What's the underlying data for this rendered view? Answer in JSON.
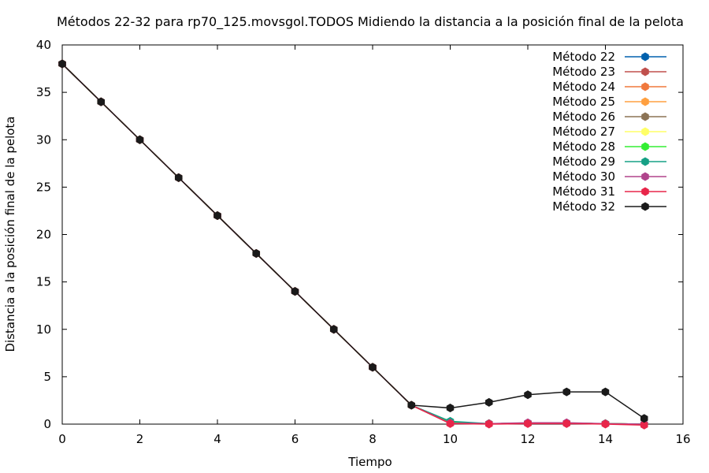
{
  "chart_data": {
    "type": "line",
    "title": "Métodos 22-32 para rp70_125.movsgol.TODOS Midiendo la distancia a la posición final de la pelota",
    "xlabel": "Tiempo",
    "ylabel": "Distancia a la posición final de la pelota",
    "xlim": [
      0,
      16
    ],
    "ylim": [
      0,
      40
    ],
    "xticks": [
      0,
      2,
      4,
      6,
      8,
      10,
      12,
      14,
      16
    ],
    "yticks": [
      0,
      5,
      10,
      15,
      20,
      25,
      30,
      35,
      40
    ],
    "grid": false,
    "legend_position": "top-right",
    "x": [
      0,
      1,
      2,
      3,
      4,
      5,
      6,
      7,
      8,
      9,
      10,
      11,
      12,
      13,
      14,
      15
    ],
    "series": [
      {
        "name": "Método 22",
        "color": "#0060ad",
        "values": [
          38,
          34,
          30,
          26,
          22,
          18,
          14,
          10,
          6,
          2,
          0.1,
          0.05,
          0.1,
          0.1,
          0.05,
          0.0
        ]
      },
      {
        "name": "Método 23",
        "color": "#c0504d",
        "values": [
          38,
          34,
          30,
          26,
          22,
          18,
          14,
          10,
          6,
          2,
          0.1,
          0.05,
          0.1,
          0.1,
          0.05,
          0.0
        ]
      },
      {
        "name": "Método 24",
        "color": "#f0783c",
        "values": [
          38,
          34,
          30,
          26,
          22,
          18,
          14,
          10,
          6,
          2,
          0.1,
          0.05,
          0.1,
          0.1,
          0.05,
          0.0
        ]
      },
      {
        "name": "Método 25",
        "color": "#ffa040",
        "values": [
          38,
          34,
          30,
          26,
          22,
          18,
          14,
          10,
          6,
          2,
          0.1,
          0.05,
          0.1,
          0.1,
          0.05,
          0.0
        ]
      },
      {
        "name": "Método 26",
        "color": "#8b7355",
        "values": [
          38,
          34,
          30,
          26,
          22,
          18,
          14,
          10,
          6,
          2,
          0.1,
          0.05,
          0.1,
          0.1,
          0.05,
          0.0
        ]
      },
      {
        "name": "Método 27",
        "color": "#ffff66",
        "values": [
          38,
          34,
          30,
          26,
          22,
          18,
          14,
          10,
          6,
          2,
          0.1,
          0.05,
          0.1,
          0.1,
          0.05,
          0.0
        ]
      },
      {
        "name": "Método 28",
        "color": "#33ee33",
        "values": [
          38,
          34,
          30,
          26,
          22,
          18,
          14,
          10,
          6,
          2,
          0.2,
          0.05,
          0.1,
          0.1,
          0.05,
          0.0
        ]
      },
      {
        "name": "Método 29",
        "color": "#16a085",
        "values": [
          38,
          34,
          30,
          26,
          22,
          18,
          14,
          10,
          6,
          2,
          0.3,
          0.05,
          0.1,
          0.1,
          0.05,
          0.0
        ]
      },
      {
        "name": "Método 30",
        "color": "#b0448c",
        "values": [
          38,
          34,
          30,
          26,
          22,
          18,
          14,
          10,
          6,
          2,
          0.1,
          0.05,
          0.15,
          0.15,
          0.05,
          0.0
        ]
      },
      {
        "name": "Método 31",
        "color": "#e8264a",
        "values": [
          38,
          34,
          30,
          26,
          22,
          18,
          14,
          10,
          6,
          2,
          0.05,
          0.0,
          0.05,
          0.05,
          0.0,
          -0.1
        ]
      },
      {
        "name": "Método 32",
        "color": "#1a1a1a",
        "values": [
          38,
          34,
          30,
          26,
          22,
          18,
          14,
          10,
          6,
          2,
          1.7,
          2.3,
          3.1,
          3.4,
          3.4,
          0.6
        ]
      }
    ]
  }
}
